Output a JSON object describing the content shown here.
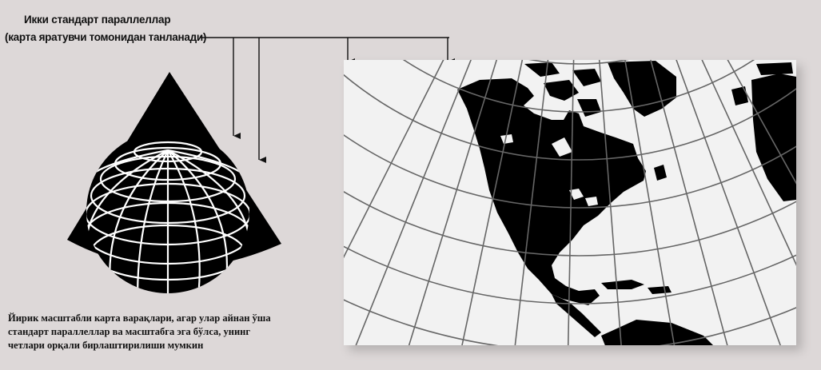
{
  "labels": {
    "title": "Икки стандарт  параллеллар",
    "subtitle": "(карта яратувчи томонидан танланади)"
  },
  "caption": {
    "line1": "Йирик масштабли карта варақлари, агар улар айнан ўша",
    "line2": "стандарт параллеллар ва масштабга эга бўлса, унинг",
    "line3": "четлари орқали бирлаштирилиши мумкин"
  },
  "colors": {
    "background": "#ddd8d8",
    "land": "#000000",
    "sea": "#f2f2f2",
    "graticule": "#ffffff",
    "grid_on_sea": "#555555"
  }
}
